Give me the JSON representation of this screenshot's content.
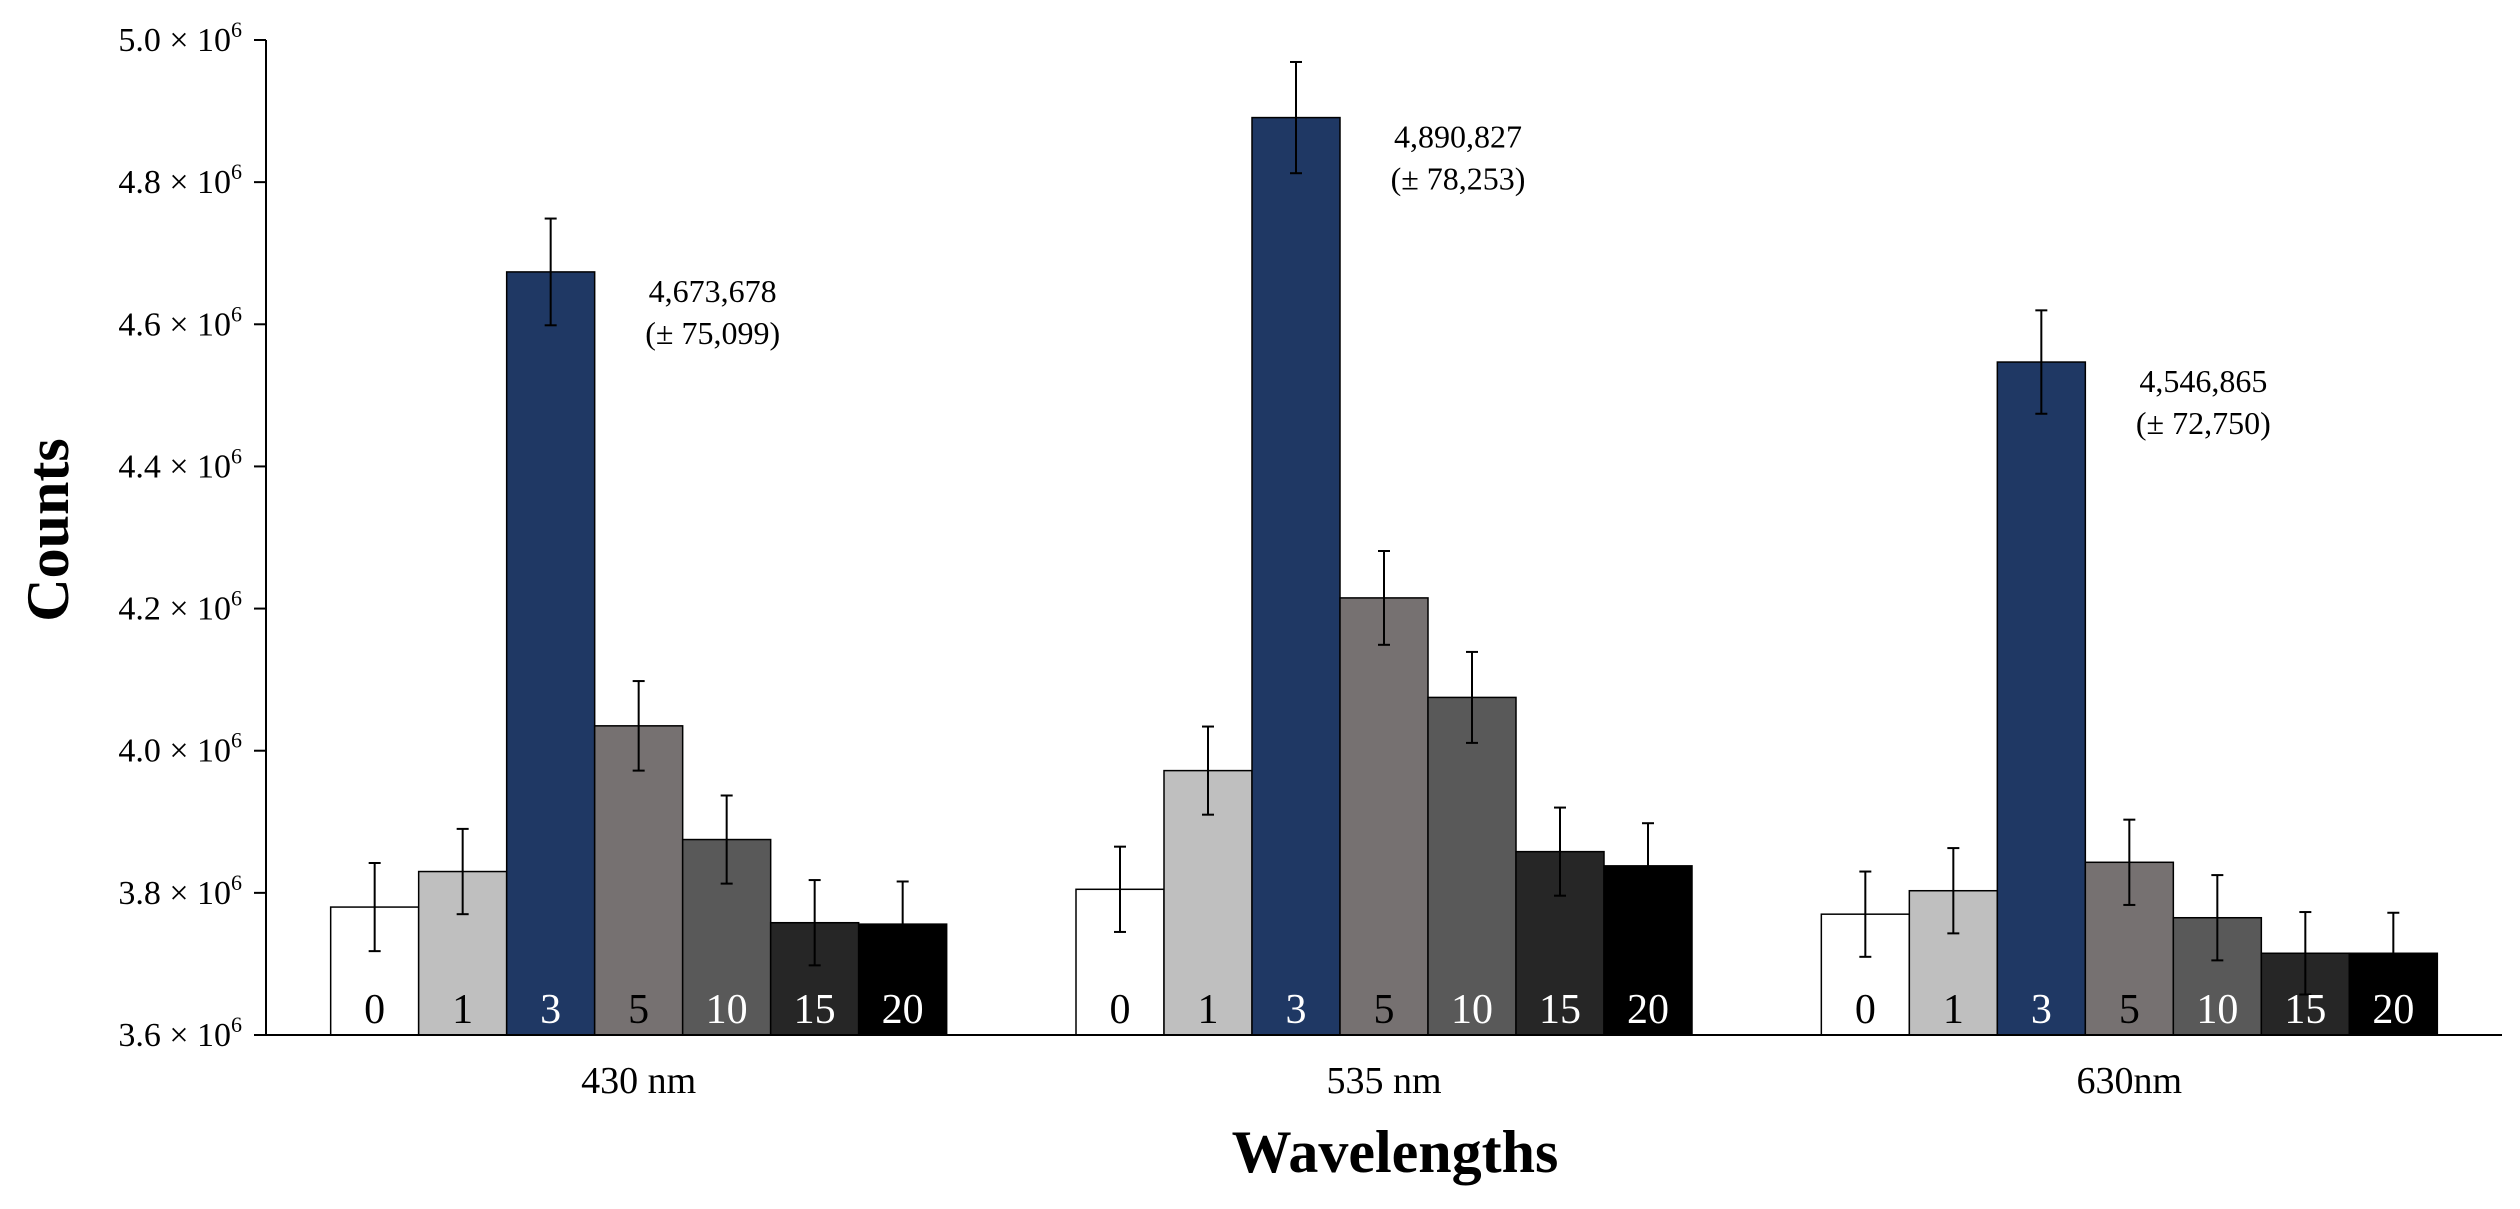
{
  "chart_data": {
    "type": "bar",
    "title": "",
    "xlabel": "Wavelengths",
    "ylabel": "Counts",
    "ylim": [
      3600000,
      5000000
    ],
    "ytick_values": [
      3600000,
      3800000,
      4000000,
      4200000,
      4400000,
      4600000,
      4800000,
      5000000
    ],
    "ytick_mantissas": [
      "3.6",
      "3.8",
      "4.0",
      "4.2",
      "4.4",
      "4.6",
      "4.8",
      "5.0"
    ],
    "ytick_times": "×",
    "ytick_base": "10",
    "ytick_exponent": "6",
    "categories": [
      "430 nm",
      "535 nm",
      "630nm"
    ],
    "series": [
      {
        "name": "0",
        "color": "#ffffff",
        "label_color": "#000000",
        "values": [
          3780000,
          3805000,
          3770000
        ],
        "errors": [
          62000,
          60000,
          60000
        ]
      },
      {
        "name": "1",
        "color": "#bfbfbf",
        "label_color": "#000000",
        "values": [
          3830000,
          3972000,
          3803000
        ],
        "errors": [
          60000,
          62000,
          60000
        ]
      },
      {
        "name": "3",
        "color": "#1f3864",
        "label_color": "#ffffff",
        "values": [
          4673678,
          4890827,
          4546865
        ],
        "errors": [
          75099,
          78253,
          72750
        ]
      },
      {
        "name": "5",
        "color": "#767171",
        "label_color": "#000000",
        "values": [
          4035000,
          4215000,
          3843000
        ],
        "errors": [
          63000,
          66000,
          60000
        ]
      },
      {
        "name": "10",
        "color": "#595959",
        "label_color": "#ffffff",
        "values": [
          3875000,
          4075000,
          3765000
        ],
        "errors": [
          62000,
          64000,
          60000
        ]
      },
      {
        "name": "15",
        "color": "#262626",
        "label_color": "#ffffff",
        "values": [
          3758000,
          3858000,
          3715000
        ],
        "errors": [
          60000,
          62000,
          58000
        ]
      },
      {
        "name": "20",
        "color": "#000000",
        "label_color": "#ffffff",
        "values": [
          3756000,
          3838000,
          3715000
        ],
        "errors": [
          60000,
          60000,
          57000
        ]
      }
    ],
    "annotations": [
      {
        "category": "430 nm",
        "series": "3",
        "value_text": "4,673,678",
        "error_text": "(± 75,099)"
      },
      {
        "category": "535 nm",
        "series": "3",
        "value_text": "4,890,827",
        "error_text": "(± 78,253)"
      },
      {
        "category": "630nm",
        "series": "3",
        "value_text": "4,546,865",
        "error_text": "(± 72,750)"
      }
    ],
    "grid": false,
    "legend": "none"
  }
}
